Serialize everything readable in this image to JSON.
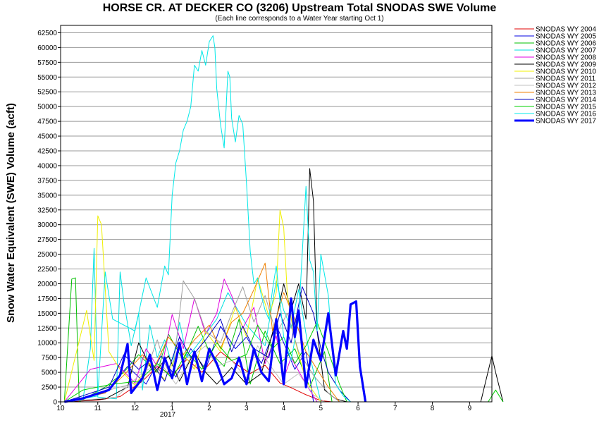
{
  "chart_data": {
    "type": "line",
    "title": "HORSE CR. AT DECKER CO (3206) Upstream Total SNODAS SWE Volume",
    "subtitle": "(Each line corresponds to a Water Year starting Oct 1)",
    "ylabel": "Snow Water Equivalent (SWE) Volume (acft)",
    "xlabel": "",
    "ylim": [
      0,
      63750
    ],
    "xlim": [
      0,
      11.6
    ],
    "yticks": [
      0,
      2500,
      5000,
      7500,
      10000,
      12500,
      15000,
      17500,
      20000,
      22500,
      25000,
      27500,
      30000,
      32500,
      35000,
      37500,
      40000,
      42500,
      45000,
      47500,
      50000,
      52500,
      55000,
      57500,
      60000,
      62500
    ],
    "xticks": [
      {
        "x": 0,
        "label": "10"
      },
      {
        "x": 1,
        "label": "11"
      },
      {
        "x": 2,
        "label": "12"
      },
      {
        "x": 3,
        "label": "1"
      },
      {
        "x": 4,
        "label": "2"
      },
      {
        "x": 5,
        "label": "3"
      },
      {
        "x": 6,
        "label": "4"
      },
      {
        "x": 7,
        "label": "5"
      },
      {
        "x": 8,
        "label": "6"
      },
      {
        "x": 9,
        "label": "7"
      },
      {
        "x": 10,
        "label": "8"
      },
      {
        "x": 11,
        "label": "9"
      }
    ],
    "year_label": "2017",
    "grid": true,
    "legend_position": "top-right",
    "series": [
      {
        "name": "SNODAS WY 2004",
        "color": "#e00000",
        "width": 1,
        "x": [
          0.1,
          1.0,
          1.6,
          2.2,
          2.6,
          3.0,
          3.4,
          3.8,
          4.3,
          4.7,
          5.1,
          5.5,
          5.9,
          6.2,
          6.6,
          7.0,
          7.3
        ],
        "y": [
          0,
          300,
          900,
          3500,
          6000,
          4500,
          7200,
          5000,
          8500,
          6500,
          4800,
          6200,
          3200,
          2400,
          1200,
          200,
          0
        ]
      },
      {
        "name": "SNODAS WY 2005",
        "color": "#0000e0",
        "width": 1,
        "x": [
          0.1,
          1.2,
          1.8,
          2.3,
          2.7,
          3.1,
          3.5,
          3.9,
          4.3,
          4.7,
          5.0,
          5.4,
          5.8,
          6.3,
          6.6,
          6.8
        ],
        "y": [
          0,
          1500,
          6000,
          3000,
          7800,
          4200,
          9000,
          5500,
          12800,
          9000,
          11000,
          6500,
          13000,
          5500,
          8500,
          0
        ]
      },
      {
        "name": "SNODAS WY 2006",
        "color": "#00c000",
        "width": 1,
        "x": [
          0.1,
          0.3,
          0.4,
          0.5,
          1.2,
          1.7,
          2.1,
          2.6,
          2.9,
          3.3,
          3.7,
          4.0,
          4.4,
          4.8,
          5.1,
          5.5,
          5.9,
          6.3,
          6.7,
          7.1,
          7.3
        ],
        "y": [
          0,
          20800,
          21000,
          0,
          2500,
          5000,
          8000,
          5000,
          11500,
          7000,
          12800,
          8500,
          6000,
          14000,
          3000,
          12000,
          6500,
          9000,
          2500,
          8500,
          0
        ]
      },
      {
        "name": "SNODAS WY 2007",
        "color": "#00e0e0",
        "width": 1,
        "x": [
          0.1,
          0.6,
          0.8,
          0.9,
          1.0,
          1.5,
          1.6,
          1.7,
          1.9,
          2.1,
          2.2,
          2.4,
          2.6,
          2.8,
          3.0,
          3.2,
          3.4,
          3.6,
          3.9,
          4.2,
          4.5,
          5.0,
          5.5,
          5.8,
          6.0,
          6.2,
          6.4,
          6.7,
          7.0
        ],
        "y": [
          0,
          300,
          9000,
          26000,
          800,
          500,
          22000,
          17000,
          9500,
          15000,
          2000,
          13000,
          7500,
          10500,
          6200,
          13500,
          7500,
          9000,
          11500,
          14000,
          18500,
          13000,
          9500,
          20500,
          15500,
          12500,
          19000,
          7800,
          0
        ]
      },
      {
        "name": "SNODAS WY 2008",
        "color": "#e000e0",
        "width": 1,
        "x": [
          0.1,
          0.8,
          1.5,
          2.0,
          2.3,
          2.7,
          3.0,
          3.3,
          3.6,
          3.9,
          4.2,
          4.4,
          4.6,
          4.9,
          5.2,
          5.5,
          5.8,
          6.0,
          6.2,
          6.6,
          6.9
        ],
        "y": [
          0,
          5500,
          6500,
          3200,
          9000,
          5000,
          14800,
          9000,
          17500,
          11500,
          15000,
          20800,
          18000,
          12500,
          16000,
          6500,
          11200,
          4000,
          7500,
          3000,
          0
        ]
      },
      {
        "name": "SNODAS WY 2009",
        "color": "#000000",
        "width": 1,
        "x": [
          0.1,
          1.2,
          1.8,
          2.1,
          2.5,
          2.9,
          3.2,
          3.6,
          3.9,
          4.2,
          4.6,
          5.0,
          5.4,
          5.8,
          6.0,
          6.2,
          6.4,
          6.6,
          6.7,
          6.8,
          6.9,
          7.1,
          7.4,
          7.7,
          11.3,
          11.6,
          11.7,
          11.9
        ],
        "y": [
          0,
          500,
          2500,
          10000,
          4800,
          7800,
          3500,
          8500,
          5000,
          3000,
          5800,
          3000,
          4800,
          14000,
          20000,
          15500,
          20000,
          14000,
          39500,
          34000,
          12000,
          2000,
          500,
          0,
          0,
          7800,
          5000,
          0
        ]
      },
      {
        "name": "SNODAS WY 2010",
        "color": "#f0f000",
        "width": 1,
        "x": [
          0.1,
          0.7,
          0.9,
          1.0,
          1.1,
          1.3,
          1.6,
          2.0,
          2.4,
          2.8,
          3.2,
          3.6,
          3.9,
          4.3,
          4.7,
          5.0,
          5.3,
          5.6,
          5.8,
          5.9,
          6.0,
          6.1,
          6.3,
          6.6,
          7.0
        ],
        "y": [
          0,
          15500,
          7000,
          31500,
          30000,
          8500,
          5500,
          2800,
          6500,
          3800,
          9000,
          5500,
          12000,
          8500,
          16000,
          11000,
          21000,
          14500,
          18500,
          32500,
          29500,
          18000,
          10500,
          3500,
          0
        ]
      },
      {
        "name": "SNODAS WY 2011",
        "color": "#a0a0a0",
        "width": 1,
        "x": [
          0.1,
          0.7,
          1.3,
          2.2,
          2.6,
          2.8,
          3.0,
          3.3,
          3.6,
          3.9,
          4.3,
          4.6,
          4.9,
          5.2,
          5.5,
          5.8,
          6.1,
          6.4,
          6.8,
          7.2,
          7.5
        ],
        "y": [
          0,
          800,
          2000,
          3500,
          10500,
          6500,
          4000,
          20500,
          17500,
          12000,
          10000,
          15000,
          19500,
          13500,
          18000,
          11500,
          15000,
          8500,
          4500,
          1500,
          0
        ]
      },
      {
        "name": "SNODAS WY 2012",
        "color": "#c0c0c0",
        "width": 1,
        "x": [
          0.1,
          1.5,
          2.2,
          2.7,
          3.1,
          3.5,
          3.9,
          4.2,
          4.6,
          5.0,
          5.3,
          5.6,
          6.0,
          6.4,
          6.8,
          7.1
        ],
        "y": [
          0,
          800,
          5000,
          6500,
          3000,
          7500,
          9500,
          6000,
          7000,
          4000,
          9500,
          6500,
          3000,
          4800,
          1200,
          0
        ]
      },
      {
        "name": "SNODAS WY 2013",
        "color": "#f08000",
        "width": 1,
        "x": [
          0.1,
          1.2,
          1.7,
          2.2,
          2.5,
          2.9,
          3.3,
          3.6,
          4.0,
          4.3,
          4.6,
          4.9,
          5.2,
          5.5,
          5.7,
          6.0,
          6.3,
          6.6,
          6.9,
          7.2,
          7.5
        ],
        "y": [
          0,
          1500,
          4500,
          8000,
          5500,
          11000,
          8000,
          10500,
          13000,
          9000,
          13500,
          15000,
          19000,
          23500,
          12000,
          18500,
          14000,
          8500,
          5500,
          2500,
          0
        ]
      },
      {
        "name": "SNODAS WY 2014",
        "color": "#0000c0",
        "width": 1,
        "x": [
          0.1,
          1.3,
          1.7,
          2.1,
          2.4,
          2.8,
          3.2,
          3.5,
          3.9,
          4.3,
          4.6,
          4.9,
          5.2,
          5.6,
          5.9,
          6.2,
          6.5,
          6.8,
          7.0,
          7.2,
          7.5,
          7.8
        ],
        "y": [
          0,
          2500,
          8000,
          5500,
          7000,
          3500,
          11000,
          7500,
          10500,
          14000,
          8500,
          12800,
          9000,
          7500,
          15000,
          10000,
          19500,
          15000,
          9000,
          5000,
          2000,
          0
        ]
      },
      {
        "name": "SNODAS WY 2015",
        "color": "#00d000",
        "width": 1,
        "x": [
          0.1,
          0.6,
          1.4,
          2.1,
          2.6,
          3.0,
          3.4,
          3.8,
          4.2,
          4.6,
          5.0,
          5.3,
          5.7,
          6.0,
          6.3,
          6.6,
          6.9,
          7.2,
          7.5,
          7.7,
          11.5,
          11.7,
          11.9
        ],
        "y": [
          0,
          2000,
          3000,
          3500,
          6500,
          4000,
          8500,
          5500,
          10000,
          7000,
          8000,
          13000,
          9000,
          11000,
          6500,
          9500,
          13500,
          8500,
          3000,
          0,
          0,
          2000,
          0
        ]
      },
      {
        "name": "SNODAS WY 2016",
        "color": "#00e8e8",
        "width": 1,
        "x": [
          0.1,
          1.0,
          1.2,
          1.4,
          2.0,
          2.3,
          2.6,
          2.8,
          2.9,
          3.0,
          3.1,
          3.2,
          3.3,
          3.4,
          3.5,
          3.6,
          3.7,
          3.8,
          3.9,
          4.0,
          4.1,
          4.15,
          4.2,
          4.3,
          4.4,
          4.5,
          4.55,
          4.6,
          4.7,
          4.8,
          4.9,
          5.0,
          5.1,
          5.2,
          5.3,
          5.4,
          5.5,
          5.6,
          5.7,
          5.8,
          5.9,
          6.0,
          6.2,
          6.4,
          6.6,
          6.7,
          6.8,
          6.9,
          7.0,
          7.2,
          7.3,
          7.4,
          7.6,
          7.8
        ],
        "y": [
          0,
          1000,
          22000,
          14000,
          12000,
          21000,
          16000,
          23000,
          21500,
          35000,
          40500,
          42500,
          46000,
          47500,
          50000,
          57000,
          56000,
          59500,
          57000,
          61000,
          62000,
          60000,
          53000,
          47000,
          43000,
          56000,
          55000,
          48000,
          44000,
          48500,
          47000,
          37000,
          25500,
          20000,
          21000,
          18000,
          15500,
          14000,
          19000,
          23000,
          17000,
          11000,
          7000,
          14000,
          36500,
          24000,
          22000,
          12000,
          25000,
          18000,
          9000,
          3000,
          1000,
          0
        ]
      },
      {
        "name": "SNODAS WY 2017",
        "color": "#0000ff",
        "width": 3.2,
        "x": [
          0.1,
          0.6,
          1.3,
          1.6,
          1.8,
          1.9,
          2.2,
          2.4,
          2.6,
          2.8,
          3.0,
          3.2,
          3.4,
          3.6,
          3.8,
          4.0,
          4.2,
          4.4,
          4.6,
          4.8,
          5.0,
          5.2,
          5.4,
          5.6,
          5.8,
          6.0,
          6.2,
          6.3,
          6.4,
          6.6,
          6.8,
          7.0,
          7.2,
          7.4,
          7.6,
          7.7,
          7.8,
          7.95,
          8.05,
          8.2
        ],
        "y": [
          0,
          600,
          2000,
          4500,
          9800,
          1500,
          4000,
          8000,
          2000,
          7500,
          4000,
          10000,
          3000,
          8500,
          3500,
          9000,
          6500,
          3000,
          4000,
          7500,
          3000,
          9000,
          5000,
          3500,
          14000,
          3000,
          17500,
          11000,
          15500,
          2500,
          10500,
          7000,
          15000,
          4500,
          12000,
          9000,
          16500,
          17000,
          6000,
          0
        ]
      }
    ]
  }
}
